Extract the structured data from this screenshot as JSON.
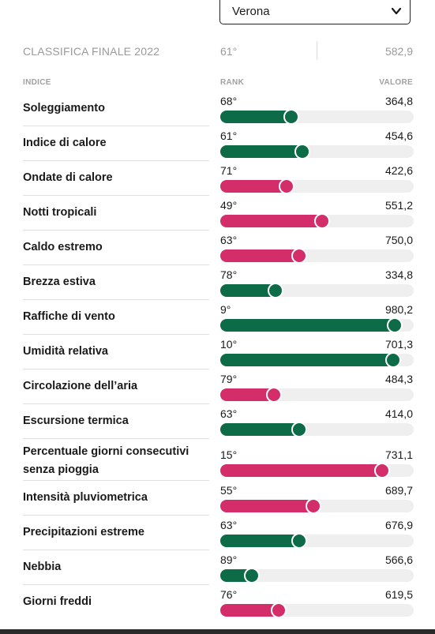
{
  "selector": {
    "value": "Verona"
  },
  "final": {
    "label": "CLASSIFICA FINALE 2022",
    "rank": "61°",
    "value": "582,9"
  },
  "headers": {
    "index": "INDICE",
    "rank": "RANK",
    "value": "VALORE"
  },
  "colors": {
    "green": "#0d6b47",
    "pink": "#d42e6a",
    "track": "#efefef"
  },
  "rows": [
    {
      "name": "Soleggiamento",
      "rank": "68°",
      "value": "364,8",
      "level": 0.36,
      "color": "green"
    },
    {
      "name": "Indice di calore",
      "rank": "61°",
      "value": "454,6",
      "level": 0.42,
      "color": "green"
    },
    {
      "name": "Ondate di calore",
      "rank": "71°",
      "value": "422,6",
      "level": 0.33,
      "color": "pink"
    },
    {
      "name": "Notti tropicali",
      "rank": "49°",
      "value": "551,2",
      "level": 0.53,
      "color": "pink"
    },
    {
      "name": "Caldo estremo",
      "rank": "63°",
      "value": "750,0",
      "level": 0.4,
      "color": "pink"
    },
    {
      "name": "Brezza estiva",
      "rank": "78°",
      "value": "334,8",
      "level": 0.27,
      "color": "green"
    },
    {
      "name": "Raffiche di vento",
      "rank": "9°",
      "value": "980,2",
      "level": 0.93,
      "color": "green"
    },
    {
      "name": "Umidità relativa",
      "rank": "10°",
      "value": "701,3",
      "level": 0.92,
      "color": "green"
    },
    {
      "name": "Circolazione dell’aria",
      "rank": "79°",
      "value": "484,3",
      "level": 0.26,
      "color": "pink"
    },
    {
      "name": "Escursione termica",
      "rank": "63°",
      "value": "414,0",
      "level": 0.4,
      "color": "green"
    },
    {
      "name": "Percentuale giorni consecutivi senza pioggia",
      "rank": "15°",
      "value": "731,1",
      "level": 0.86,
      "color": "pink"
    },
    {
      "name": "Intensità pluviometrica",
      "rank": "55°",
      "value": "689,7",
      "level": 0.48,
      "color": "pink"
    },
    {
      "name": "Precipitazioni estreme",
      "rank": "63°",
      "value": "676,9",
      "level": 0.4,
      "color": "green"
    },
    {
      "name": "Nebbia",
      "rank": "89°",
      "value": "566,6",
      "level": 0.14,
      "color": "green"
    },
    {
      "name": "Giorni freddi",
      "rank": "76°",
      "value": "619,5",
      "level": 0.29,
      "color": "pink"
    }
  ]
}
